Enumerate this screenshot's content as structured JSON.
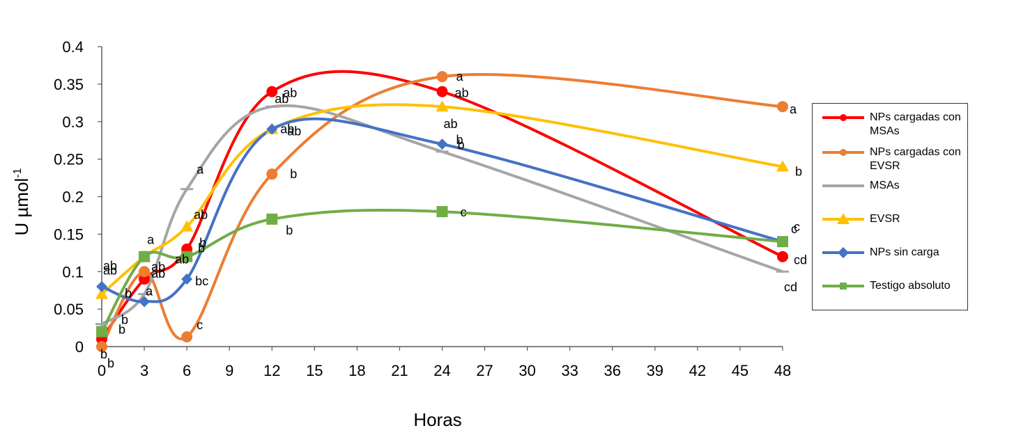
{
  "chart_data": {
    "type": "line",
    "smooth": true,
    "title": "",
    "xlabel": "Horas",
    "ylabel": "U µmol",
    "ylabel_superscript": "-1",
    "xlim": [
      0,
      48
    ],
    "ylim": [
      0,
      0.4
    ],
    "x_ticks": [
      "0",
      "3",
      "6",
      "9",
      "12",
      "15",
      "18",
      "21",
      "24",
      "27",
      "30",
      "33",
      "36",
      "39",
      "42",
      "45",
      "48"
    ],
    "y_ticks": [
      "0",
      "0.05",
      "0.1",
      "0.15",
      "0.2",
      "0.25",
      "0.3",
      "0.35",
      "0.4"
    ],
    "x": [
      0,
      3,
      6,
      12,
      24,
      48
    ],
    "grid": false,
    "legend_position": "right",
    "series": [
      {
        "name": "NPs cargadas con MSAs",
        "color": "#ff0000",
        "marker": "circle",
        "values": [
          0.01,
          0.09,
          0.13,
          0.34,
          0.34,
          0.12
        ],
        "labels": [
          "b",
          "ab",
          "b",
          "ab",
          "ab",
          "cd"
        ]
      },
      {
        "name": "NPs cargadas con EVSR",
        "color": "#ed7d31",
        "marker": "circle",
        "values": [
          0.0,
          0.1,
          0.013,
          0.23,
          0.36,
          0.32
        ],
        "labels": [
          "b",
          "ab",
          "c",
          "b",
          "a",
          "a"
        ]
      },
      {
        "name": "MSAs",
        "color": "#a5a5a5",
        "marker": "dash",
        "values": [
          0.03,
          0.07,
          0.21,
          0.32,
          0.26,
          0.1
        ],
        "labels": [
          "b",
          "a",
          "a",
          "ab",
          "b",
          "cd"
        ]
      },
      {
        "name": "EVSR",
        "color": "#ffc000",
        "marker": "triangle",
        "values": [
          0.07,
          0.12,
          0.16,
          0.29,
          0.32,
          0.24
        ],
        "labels": [
          "ab",
          "a",
          "ab",
          "ab",
          "ab",
          "b"
        ]
      },
      {
        "name": "NPs sin carga",
        "color": "#4472c4",
        "marker": "diamond",
        "values": [
          0.08,
          0.06,
          0.09,
          0.29,
          0.27,
          0.14
        ],
        "labels": [
          "ab",
          "b",
          "bc",
          "ab",
          "b",
          "c"
        ]
      },
      {
        "name": "Testigo absoluto",
        "color": "#70ad47",
        "marker": "square",
        "values": [
          0.02,
          0.12,
          0.12,
          0.17,
          0.18,
          0.14
        ],
        "labels": [
          "b",
          "ab",
          "b",
          "b",
          "c",
          "c"
        ]
      }
    ]
  },
  "legend": {
    "items": [
      "NPs cargadas con\nMSAs",
      "NPs cargadas con\nEVSR",
      "MSAs",
      "EVSR",
      "NPs sin carga",
      "Testigo absoluto"
    ]
  }
}
